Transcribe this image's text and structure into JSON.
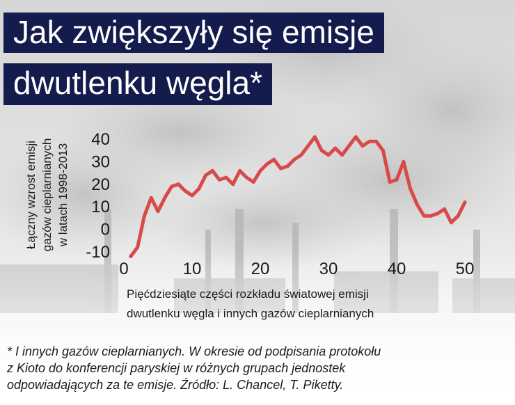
{
  "title": {
    "line1": "Jak zwiększyły się emisje",
    "line2": "dwutlenku węgla*"
  },
  "footnote": {
    "line1": "* I innych gazów cieplarnianych. W okresie od podpisania protokołu",
    "line2": "z Kioto do konferencji paryskiej w różnych grupach jednostek",
    "line3": "odpowiadających za te emisje. Źródło: L. Chancel, T. Piketty."
  },
  "chart_data": {
    "type": "line",
    "title": "Jak zwiększyły się emisje dwutlenku węgla*",
    "ylabel": [
      "Łączny wzrost emisji",
      "gazów cieplarnianych",
      "w latach 1998-2013"
    ],
    "xlabel": [
      "Pięćdziesiąte części rozkładu światowej emisji",
      "dwutlenku węgla i innych gazów cieplarnianych"
    ],
    "xlim": [
      0,
      50
    ],
    "ylim": [
      -10,
      40
    ],
    "xticks": [
      0,
      10,
      20,
      30,
      40,
      50
    ],
    "yticks": [
      -10,
      0,
      10,
      20,
      30,
      40
    ],
    "grid": false,
    "line_color": "#d84a4a",
    "x": [
      1,
      2,
      3,
      4,
      5,
      6,
      7,
      8,
      9,
      10,
      11,
      12,
      13,
      14,
      15,
      16,
      17,
      18,
      19,
      20,
      21,
      22,
      23,
      24,
      25,
      26,
      27,
      28,
      29,
      30,
      31,
      32,
      33,
      34,
      35,
      36,
      37,
      38,
      39,
      40,
      41,
      42,
      43,
      44,
      45,
      46,
      47,
      48,
      49,
      50
    ],
    "values": [
      -12,
      -8,
      6,
      14,
      8,
      14,
      19,
      20,
      17,
      15,
      18,
      24,
      26,
      22,
      23,
      20,
      26,
      23,
      21,
      26,
      29,
      31,
      27,
      28,
      31,
      33,
      37,
      41,
      35,
      33,
      36,
      33,
      37,
      41,
      37,
      39,
      39,
      35,
      21,
      22,
      30,
      18,
      11,
      6,
      6,
      7,
      9,
      3,
      6,
      12
    ]
  }
}
